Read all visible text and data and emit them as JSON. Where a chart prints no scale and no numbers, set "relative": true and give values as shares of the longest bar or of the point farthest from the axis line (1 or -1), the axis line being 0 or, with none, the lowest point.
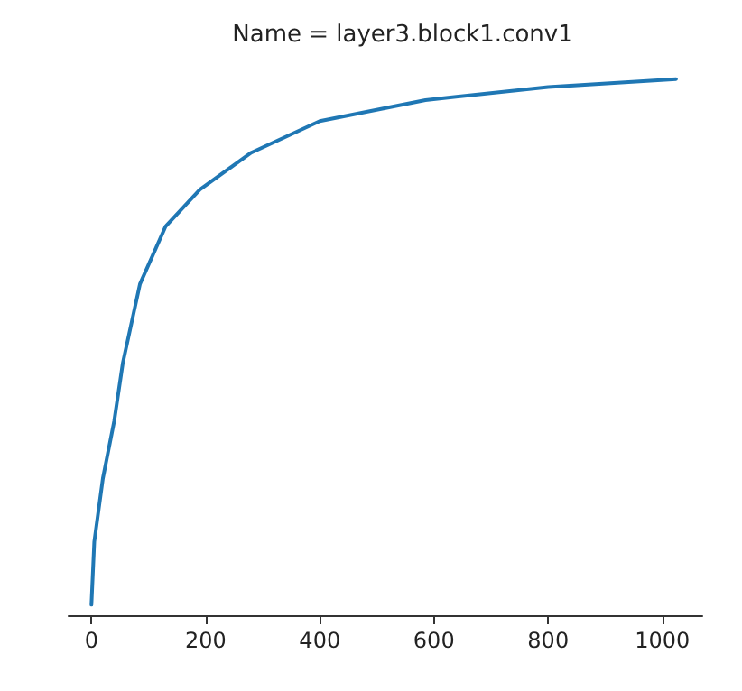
{
  "chart_data": {
    "type": "line",
    "title": "Name = layer3.block1.conv1",
    "relative": true,
    "x": [
      0,
      5,
      20,
      40,
      55,
      85,
      130,
      190,
      280,
      400,
      585,
      800,
      1024
    ],
    "series": [
      {
        "color": "#1f77b4",
        "values": [
          0,
          0.12,
          0.24,
          0.35,
          0.46,
          0.61,
          0.72,
          0.79,
          0.86,
          0.92,
          0.96,
          0.985,
          1
        ]
      }
    ],
    "xlim": [
      -40,
      1070
    ],
    "xticks": [
      0,
      200,
      400,
      600,
      800,
      1000
    ],
    "grid": false,
    "marker": "none",
    "line_style": "solid"
  }
}
